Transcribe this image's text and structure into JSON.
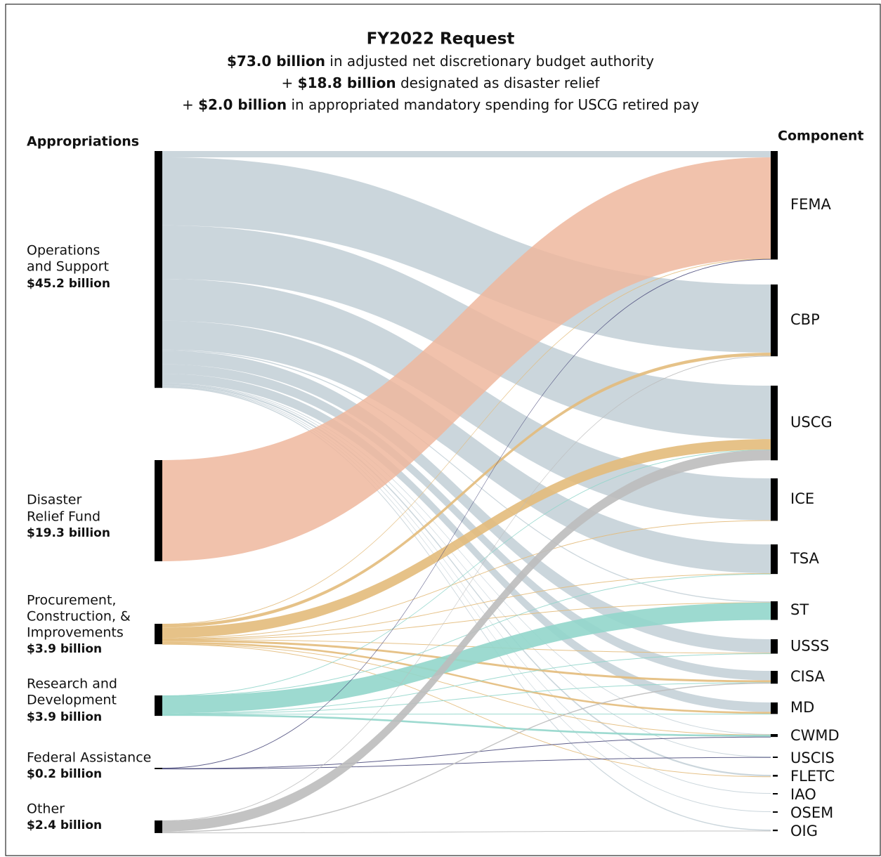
{
  "chart_data": {
    "type": "sankey",
    "title": "FY2022 Request",
    "subtitle_lines": [
      [
        {
          "text": "$73.0 billion",
          "bold": true
        },
        {
          "text": " in adjusted net discretionary budget authority",
          "bold": false
        }
      ],
      [
        {
          "text": "+ ",
          "bold": false
        },
        {
          "text": "$18.8 billion",
          "bold": true
        },
        {
          "text": " designated as disaster relief",
          "bold": false
        }
      ],
      [
        {
          "text": "+ ",
          "bold": false
        },
        {
          "text": "$2.0 billion",
          "bold": true
        },
        {
          "text": " in appropriated mandatory spending for USCG retired pay",
          "bold": false
        }
      ]
    ],
    "left_heading": "Appropriations",
    "right_heading": "Component",
    "components": [
      "FEMA",
      "CBP",
      "USCG",
      "ICE",
      "TSA",
      "ST",
      "USSS",
      "CISA",
      "MD",
      "CWMD",
      "USCIS",
      "FLETC",
      "IAO",
      "OSEM",
      "OIG"
    ],
    "sources": [
      {
        "lines": [
          "Operations",
          "and Support"
        ],
        "value": 45.2,
        "value_label": "$45.2 billion",
        "color": "#c5d2d8",
        "flows": [
          {
            "to": "FEMA",
            "value": 1.2
          },
          {
            "to": "CBP",
            "value": 13.0
          },
          {
            "to": "USCG",
            "value": 10.2
          },
          {
            "to": "ICE",
            "value": 8.0
          },
          {
            "to": "TSA",
            "value": 5.5
          },
          {
            "to": "ST",
            "value": 0.2
          },
          {
            "to": "USSS",
            "value": 2.6
          },
          {
            "to": "CISA",
            "value": 1.8
          },
          {
            "to": "MD",
            "value": 1.8
          },
          {
            "to": "CWMD",
            "value": 0.1
          },
          {
            "to": "USCIS",
            "value": 0.1
          },
          {
            "to": "FLETC",
            "value": 0.3
          },
          {
            "to": "IAO",
            "value": 0.1
          },
          {
            "to": "OSEM",
            "value": 0.1
          },
          {
            "to": "OIG",
            "value": 0.2
          }
        ]
      },
      {
        "lines": [
          "Disaster",
          "Relief Fund"
        ],
        "value": 19.3,
        "value_label": "$19.3 billion",
        "color": "#efb79d",
        "flows": [
          {
            "to": "FEMA",
            "value": 19.3
          }
        ]
      },
      {
        "lines": [
          "Procurement,",
          "Construction, &",
          "Improvements"
        ],
        "value": 3.9,
        "value_label": "$3.9 billion",
        "color": "#e3bb7b",
        "flows": [
          {
            "to": "FEMA",
            "value": 0.1
          },
          {
            "to": "CBP",
            "value": 0.6
          },
          {
            "to": "USCG",
            "value": 2.0
          },
          {
            "to": "ICE",
            "value": 0.1
          },
          {
            "to": "TSA",
            "value": 0.1
          },
          {
            "to": "ST",
            "value": 0.05
          },
          {
            "to": "USSS",
            "value": 0.1
          },
          {
            "to": "CISA",
            "value": 0.4
          },
          {
            "to": "MD",
            "value": 0.35
          },
          {
            "to": "CWMD",
            "value": 0.05
          },
          {
            "to": "FLETC",
            "value": 0.05
          }
        ]
      },
      {
        "lines": [
          "Research and",
          "Development"
        ],
        "value": 3.9,
        "value_label": "$3.9 billion",
        "color": "#92d6cb",
        "flows": [
          {
            "to": "USCG",
            "value": 0.05
          },
          {
            "to": "TSA",
            "value": 0.05
          },
          {
            "to": "ST",
            "value": 3.3
          },
          {
            "to": "USSS",
            "value": 0.05
          },
          {
            "to": "CISA",
            "value": 0.05
          },
          {
            "to": "MD",
            "value": 0.05
          },
          {
            "to": "CWMD",
            "value": 0.35
          }
        ]
      },
      {
        "lines": [
          "Federal Assistance"
        ],
        "value": 0.2,
        "value_label": "$0.2 billion",
        "color": "#4b4b7c",
        "flows": [
          {
            "to": "FEMA",
            "value": 0.1
          },
          {
            "to": "CWMD",
            "value": 0.05
          },
          {
            "to": "USCIS",
            "value": 0.05
          }
        ]
      },
      {
        "lines": [
          "Other"
        ],
        "value": 2.4,
        "value_label": "$2.4 billion",
        "color": "#bdbdbd",
        "flows": [
          {
            "to": "CBP",
            "value": 0.1
          },
          {
            "to": "USCG",
            "value": 2.0
          },
          {
            "to": "CISA",
            "value": 0.2
          },
          {
            "to": "OIG",
            "value": 0.1
          }
        ]
      }
    ]
  }
}
